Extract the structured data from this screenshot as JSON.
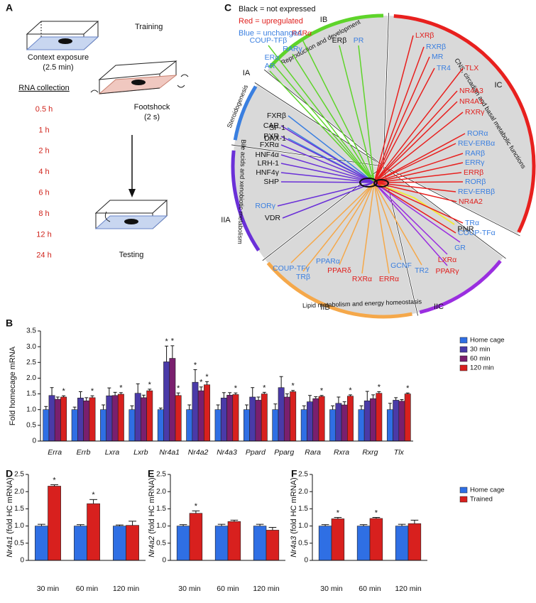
{
  "panel_labels": [
    "A",
    "B",
    "C",
    "D",
    "E",
    "F"
  ],
  "panel_a": {
    "training": "Training",
    "context": "Context exposure",
    "context_time": "(2.5 min)",
    "footshock": "Footshock",
    "footshock_time": "(2 s)",
    "rna_title": "RNA collection",
    "times": [
      "0.5 h",
      "1 h",
      "2 h",
      "4 h",
      "6 h",
      "8 h",
      "12 h",
      "24 h"
    ],
    "times_color": "#d0241c",
    "testing": "Testing"
  },
  "panel_c": {
    "key": [
      {
        "text": "Black = not expressed",
        "color": "#111111"
      },
      {
        "text": "Red = upregulated",
        "color": "#e0201e"
      },
      {
        "text": "Blue = unchanged",
        "color": "#3a7fe0"
      }
    ],
    "groups": [
      {
        "label": "IA",
        "caption": "Steroidogenesis",
        "color": "#3a7fe0"
      },
      {
        "label": "IB",
        "caption": "Reproduction and development",
        "color": "#5ed42a"
      },
      {
        "label": "IC",
        "caption": "CNS, circadian and basal metabolic functions",
        "color": "#e8201e"
      },
      {
        "label": "IIA",
        "caption": "Bile acids and xenobiotic metabolism",
        "color": "#6a30d8"
      },
      {
        "label": "IIB",
        "caption": "Lipid metabolism and energy homeostasis",
        "color": "#f5a84a"
      },
      {
        "label": "IIC",
        "color": "#9a2ee0"
      },
      {
        "label": "PNR",
        "color": "#f2e93a"
      }
    ],
    "leaves": [
      {
        "label": "FXRβ",
        "color": "#111111",
        "group": 0
      },
      {
        "label": "SF-1",
        "color": "#111111",
        "group": 0
      },
      {
        "label": "DAX-1",
        "color": "#111111",
        "group": 0
      },
      {
        "label": "COUP-TFβ",
        "color": "#3a7fe0",
        "group": 1
      },
      {
        "label": "RARα",
        "color": "#e0201e",
        "group": 1
      },
      {
        "label": "ERβ",
        "color": "#111111",
        "group": 1
      },
      {
        "label": "PR",
        "color": "#3a7fe0",
        "group": 1
      },
      {
        "label": "RARγ",
        "color": "#3a7fe0",
        "group": 1
      },
      {
        "label": "ERα",
        "color": "#3a7fe0",
        "group": 1
      },
      {
        "label": "AR",
        "color": "#3a7fe0",
        "group": 1
      },
      {
        "label": "LXRβ",
        "color": "#e0201e",
        "group": 2
      },
      {
        "label": "RXRβ",
        "color": "#3a7fe0",
        "group": 2
      },
      {
        "label": "MR",
        "color": "#3a7fe0",
        "group": 2
      },
      {
        "label": "TR4",
        "color": "#3a7fe0",
        "group": 2
      },
      {
        "label": "TLX",
        "color": "#e0201e",
        "group": 2
      },
      {
        "label": "NR4A3",
        "color": "#e0201e",
        "group": 2
      },
      {
        "label": "NR4A1",
        "color": "#e0201e",
        "group": 2
      },
      {
        "label": "RXRγ",
        "color": "#e0201e",
        "group": 2
      },
      {
        "label": "RORα",
        "color": "#3a7fe0",
        "group": 2
      },
      {
        "label": "REV-ERBα",
        "color": "#3a7fe0",
        "group": 2
      },
      {
        "label": "RARβ",
        "color": "#3a7fe0",
        "group": 2
      },
      {
        "label": "ERRγ",
        "color": "#3a7fe0",
        "group": 2
      },
      {
        "label": "ERRβ",
        "color": "#e0201e",
        "group": 2
      },
      {
        "label": "RORβ",
        "color": "#3a7fe0",
        "group": 2
      },
      {
        "label": "REV-ERBβ",
        "color": "#3a7fe0",
        "group": 2
      },
      {
        "label": "NR4A2",
        "color": "#e0201e",
        "group": 2
      },
      {
        "label": "TRα",
        "color": "#3a7fe0",
        "group": 2
      },
      {
        "label": "COUP-TFα",
        "color": "#3a7fe0",
        "group": 2
      },
      {
        "label": "CAR",
        "color": "#111111",
        "group": 3
      },
      {
        "label": "PXR",
        "color": "#111111",
        "group": 3
      },
      {
        "label": "FXRα",
        "color": "#111111",
        "group": 3
      },
      {
        "label": "HNF4α",
        "color": "#111111",
        "group": 3
      },
      {
        "label": "LRH-1",
        "color": "#111111",
        "group": 3
      },
      {
        "label": "HNF4γ",
        "color": "#111111",
        "group": 3
      },
      {
        "label": "SHP",
        "color": "#111111",
        "group": 3
      },
      {
        "label": "RORγ",
        "color": "#3a7fe0",
        "group": 3
      },
      {
        "label": "VDR",
        "color": "#111111",
        "group": 3
      },
      {
        "label": "COUP-TFγ",
        "color": "#3a7fe0",
        "group": 4
      },
      {
        "label": "TRβ",
        "color": "#3a7fe0",
        "group": 4
      },
      {
        "label": "PPARα",
        "color": "#3a7fe0",
        "group": 4
      },
      {
        "label": "PPARδ",
        "color": "#e0201e",
        "group": 4
      },
      {
        "label": "RXRα",
        "color": "#e0201e",
        "group": 4
      },
      {
        "label": "ERRα",
        "color": "#e0201e",
        "group": 4
      },
      {
        "label": "GCNF",
        "color": "#3a7fe0",
        "group": 4
      },
      {
        "label": "TR2",
        "color": "#3a7fe0",
        "group": 4
      },
      {
        "label": "PPARγ",
        "color": "#e0201e",
        "group": 5
      },
      {
        "label": "LXRα",
        "color": "#e0201e",
        "group": 5
      },
      {
        "label": "GR",
        "color": "#3a7fe0",
        "group": 5
      }
    ]
  },
  "chart_data": [
    {
      "type": "bar",
      "ylabel": "Fold homecage mRNA",
      "italic_categories": true,
      "categories": [
        "Erra",
        "Errb",
        "Lxra",
        "Lxrb",
        "Nr4a1",
        "Nr4a2",
        "Nr4a3",
        "Ppard",
        "Pparg",
        "Rara",
        "Rxra",
        "Rxrg",
        "Tlx"
      ],
      "ylim": [
        0,
        3.5
      ],
      "yticks": [
        0,
        0.5,
        {
          "value": 1,
          "label": "1.0"
        },
        1.5,
        {
          "value": 2,
          "label": "2.0"
        },
        2.5,
        {
          "value": 3,
          "label": "3.0"
        },
        3.5
      ],
      "legend": "right",
      "series": [
        {
          "name": "Home cage",
          "color": "#2f6fe4",
          "values": [
            1.0,
            1.0,
            1.0,
            1.0,
            1.0,
            1.0,
            1.0,
            1.0,
            1.0,
            1.0,
            1.0,
            1.0,
            1.0
          ],
          "errors": [
            0.1,
            0.08,
            0.15,
            0.12,
            0.05,
            0.15,
            0.15,
            0.15,
            0.18,
            0.12,
            0.12,
            0.12,
            0.2
          ]
        },
        {
          "name": "30 min",
          "color": "#4a3aa8",
          "values": [
            1.45,
            1.37,
            1.44,
            1.52,
            2.52,
            1.87,
            1.37,
            1.4,
            1.7,
            1.25,
            1.2,
            1.28,
            1.3
          ],
          "errors": [
            0.25,
            0.2,
            0.25,
            0.3,
            0.5,
            0.4,
            0.17,
            0.3,
            0.35,
            0.2,
            0.2,
            0.3,
            0.08
          ],
          "significance": [
            null,
            null,
            null,
            null,
            "*",
            "*",
            null,
            null,
            null,
            null,
            null,
            null,
            null
          ]
        },
        {
          "name": "60 min",
          "color": "#7a1f6e",
          "values": [
            1.33,
            1.28,
            1.45,
            1.38,
            2.63,
            1.6,
            1.46,
            1.3,
            1.4,
            1.35,
            1.15,
            1.35,
            1.27
          ],
          "errors": [
            0.07,
            0.1,
            0.1,
            0.08,
            0.4,
            0.12,
            0.08,
            0.1,
            0.1,
            0.06,
            0.1,
            0.12,
            0.05
          ],
          "significance": [
            null,
            null,
            null,
            null,
            "*",
            "*",
            null,
            null,
            null,
            null,
            null,
            null,
            null
          ]
        },
        {
          "name": "120 min",
          "color": "#d8201e",
          "values": [
            1.4,
            1.38,
            1.49,
            1.6,
            1.45,
            1.79,
            1.48,
            1.5,
            1.57,
            1.42,
            1.43,
            1.52,
            1.5
          ],
          "errors": [
            0.04,
            0.06,
            0.05,
            0.05,
            0.08,
            0.1,
            0.05,
            0.05,
            0.04,
            0.03,
            0.04,
            0.05,
            0.03
          ],
          "significance": [
            "*",
            "*",
            "*",
            "*",
            "*",
            "*",
            "*",
            "*",
            "*",
            "*",
            "*",
            "*",
            "*"
          ]
        }
      ]
    },
    {
      "type": "bar",
      "ylabel_gene": "Nr4a1",
      "ylabel": "(fold HC mRNA)",
      "categories": [
        "30 min",
        "60 min",
        "120 min"
      ],
      "ylim": [
        0,
        2.5
      ],
      "yticks": [
        0,
        0.5,
        {
          "value": 1,
          "label": "1.0"
        },
        1.5,
        {
          "value": 2,
          "label": "2.0"
        },
        2.5
      ],
      "series": [
        {
          "color": "#2f6fe4",
          "values": [
            1.0,
            1.0,
            1.0
          ],
          "errors": [
            0.05,
            0.04,
            0.03
          ]
        },
        {
          "color": "#d8201e",
          "values": [
            2.16,
            1.65,
            1.02
          ],
          "errors": [
            0.04,
            0.12,
            0.12
          ],
          "significance": [
            "*",
            "*",
            null
          ]
        }
      ]
    },
    {
      "type": "bar",
      "ylabel_gene": "Nr4a2",
      "ylabel": "(fold HC mRNA)",
      "categories": [
        "30 min",
        "60 min",
        "120 min"
      ],
      "ylim": [
        0,
        2.5
      ],
      "yticks": [
        0,
        0.5,
        {
          "value": 1,
          "label": "1.0"
        },
        1.5,
        {
          "value": 2,
          "label": "2.0"
        },
        2.5
      ],
      "series": [
        {
          "color": "#2f6fe4",
          "values": [
            1.0,
            1.0,
            1.0
          ],
          "errors": [
            0.04,
            0.05,
            0.05
          ]
        },
        {
          "color": "#d8201e",
          "values": [
            1.37,
            1.13,
            0.88
          ],
          "errors": [
            0.07,
            0.04,
            0.08
          ],
          "significance": [
            "*",
            null,
            null
          ]
        }
      ]
    },
    {
      "type": "bar",
      "ylabel_gene": "Nr4a3",
      "ylabel": "(fold HC mRNA)",
      "categories": [
        "30 min",
        "60 min",
        "120 min"
      ],
      "ylim": [
        0,
        2.5
      ],
      "yticks": [
        0,
        0.5,
        {
          "value": 1,
          "label": "1.0"
        },
        1.5,
        {
          "value": 2,
          "label": "2.0"
        },
        2.5
      ],
      "legend": "right",
      "series": [
        {
          "name": "Home cage",
          "color": "#2f6fe4",
          "values": [
            1.0,
            1.0,
            1.0
          ],
          "errors": [
            0.04,
            0.04,
            0.05
          ]
        },
        {
          "name": "Trained",
          "color": "#d8201e",
          "values": [
            1.21,
            1.22,
            1.07
          ],
          "errors": [
            0.04,
            0.03,
            0.1
          ],
          "significance": [
            "*",
            "*",
            null
          ]
        }
      ]
    }
  ]
}
